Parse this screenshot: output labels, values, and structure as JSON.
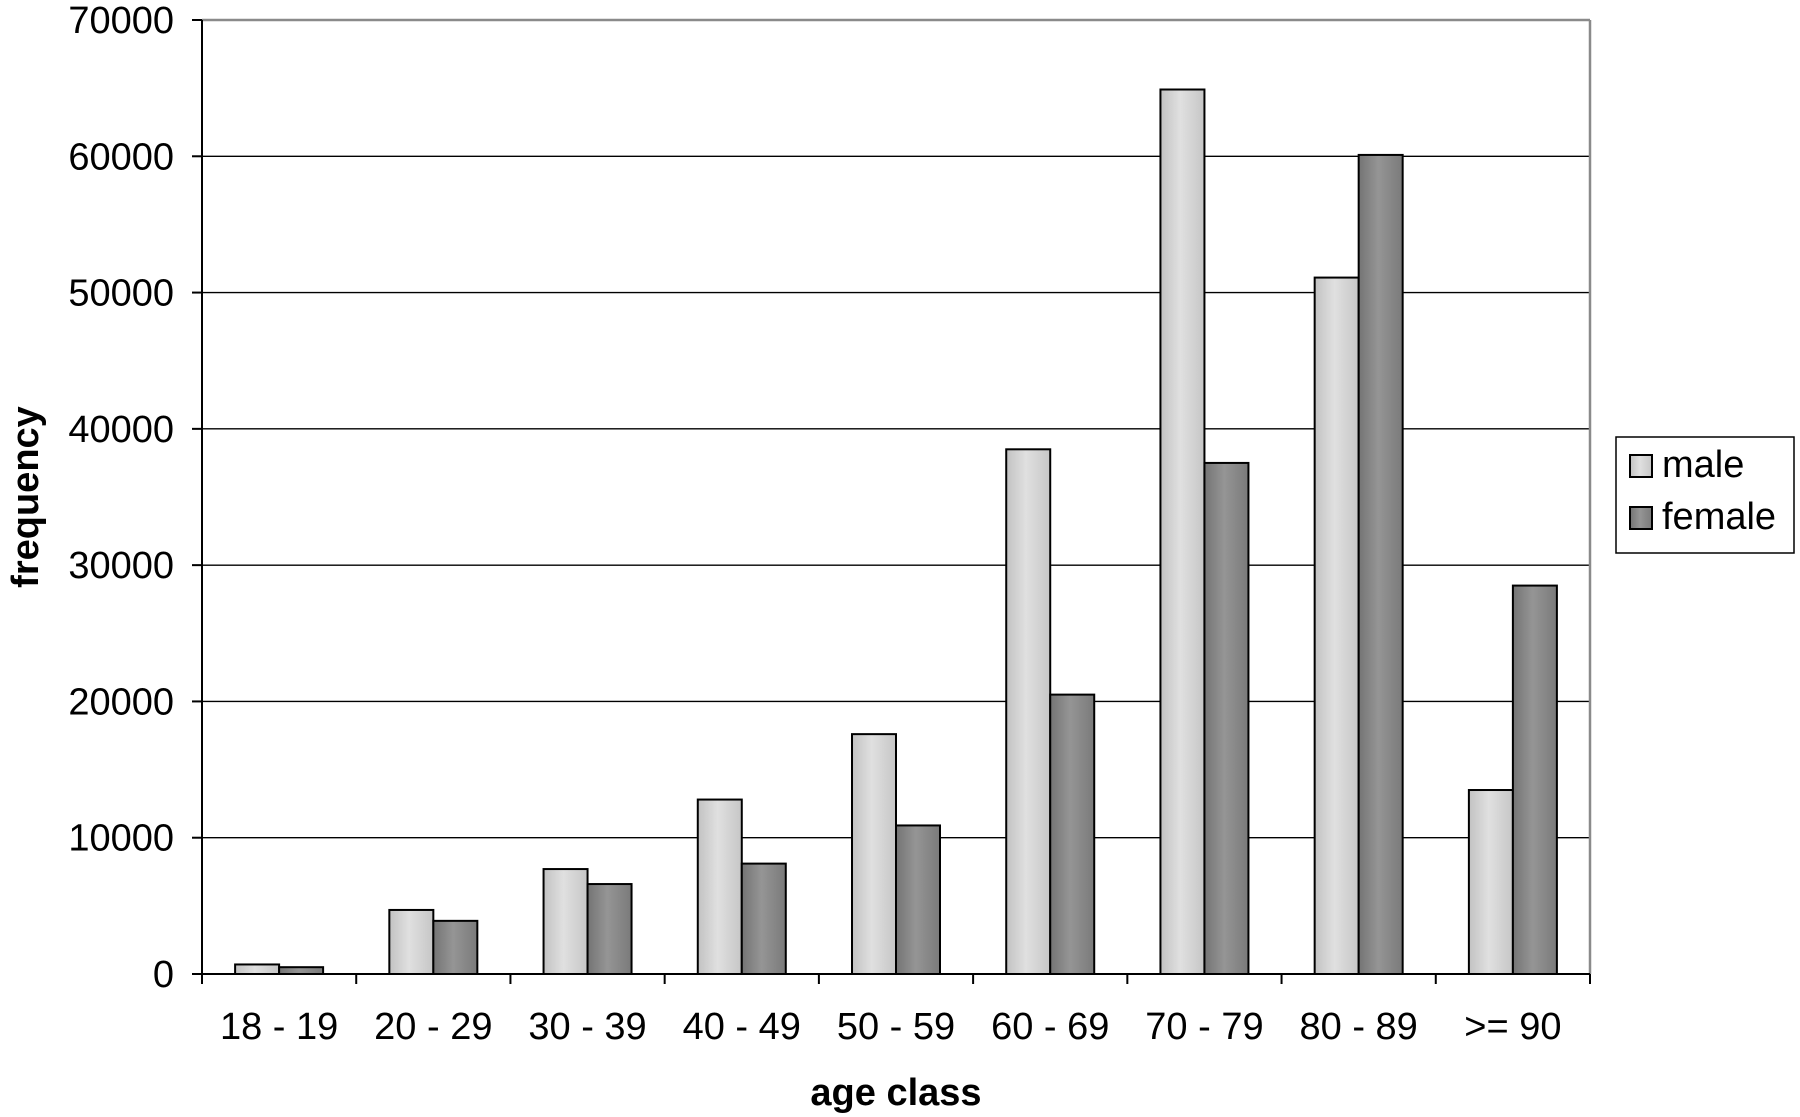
{
  "chart_data": {
    "type": "bar",
    "title": "",
    "xlabel": "age class",
    "ylabel": "frequency",
    "categories": [
      "18 - 19",
      "20 - 29",
      "30 - 39",
      "40 - 49",
      "50 - 59",
      "60 - 69",
      "70 - 79",
      "80 - 89",
      ">= 90"
    ],
    "series": [
      {
        "name": "male",
        "color": "#d0d0d0",
        "values": [
          700,
          4700,
          7700,
          12800,
          17600,
          38500,
          64900,
          51100,
          13500
        ]
      },
      {
        "name": "female",
        "color": "#838383",
        "values": [
          500,
          3900,
          6600,
          8100,
          10900,
          20500,
          37500,
          60100,
          28500
        ]
      }
    ],
    "ylim": [
      0,
      70000
    ],
    "yticks": [
      0,
      10000,
      20000,
      30000,
      40000,
      50000,
      60000,
      70000
    ],
    "grid": true,
    "legend": "right"
  }
}
